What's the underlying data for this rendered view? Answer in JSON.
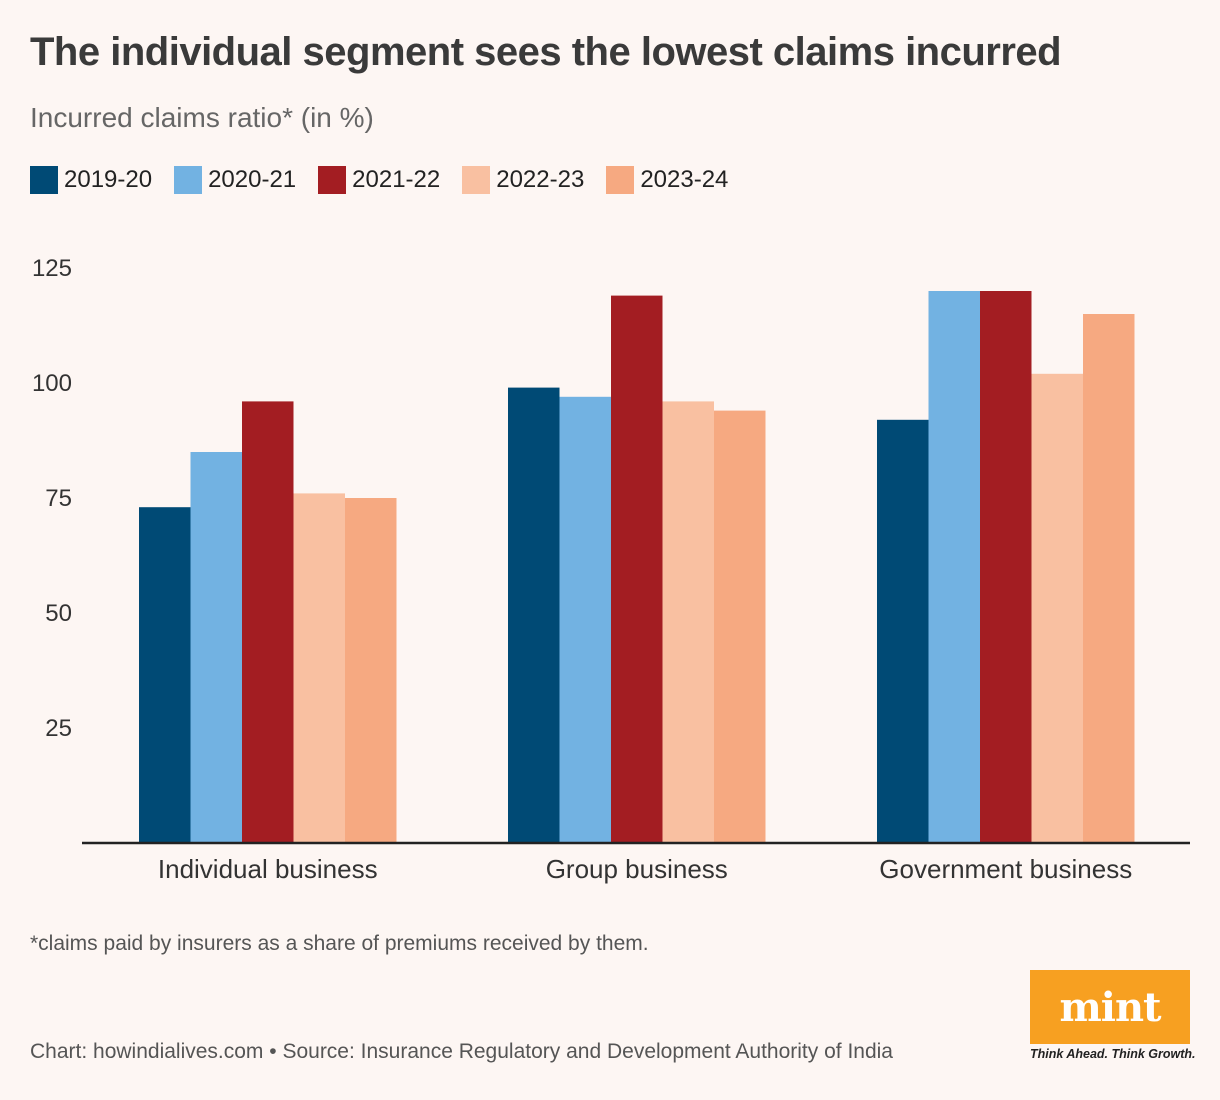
{
  "title": "The individual segment sees the lowest claims incurred",
  "subtitle": "Incurred claims ratio* (in %)",
  "footnote": "*claims paid by insurers as a share of premiums received by them.",
  "source": "Chart: howindialives.com • Source: Insurance Regulatory and Development Authority of India",
  "logo": {
    "word": "mint",
    "tagline": "Think Ahead. Think Growth.",
    "color": "#f7a021"
  },
  "chart_data": {
    "type": "bar",
    "categories": [
      "Individual business",
      "Group business",
      "Government business"
    ],
    "series": [
      {
        "name": "2019-20",
        "color": "#004a75",
        "values": [
          73,
          99,
          92
        ]
      },
      {
        "name": "2020-21",
        "color": "#72b2e2",
        "values": [
          85,
          97,
          120
        ]
      },
      {
        "name": "2021-22",
        "color": "#a31d22",
        "values": [
          96,
          119,
          120
        ]
      },
      {
        "name": "2022-23",
        "color": "#f9c0a1",
        "values": [
          76,
          96,
          102
        ]
      },
      {
        "name": "2023-24",
        "color": "#f6a981",
        "values": [
          75,
          94,
          115
        ]
      }
    ],
    "yticks": [
      25,
      50,
      75,
      100,
      125
    ],
    "ylim": [
      0,
      125
    ],
    "grid": false,
    "legend_position": "top-left"
  }
}
